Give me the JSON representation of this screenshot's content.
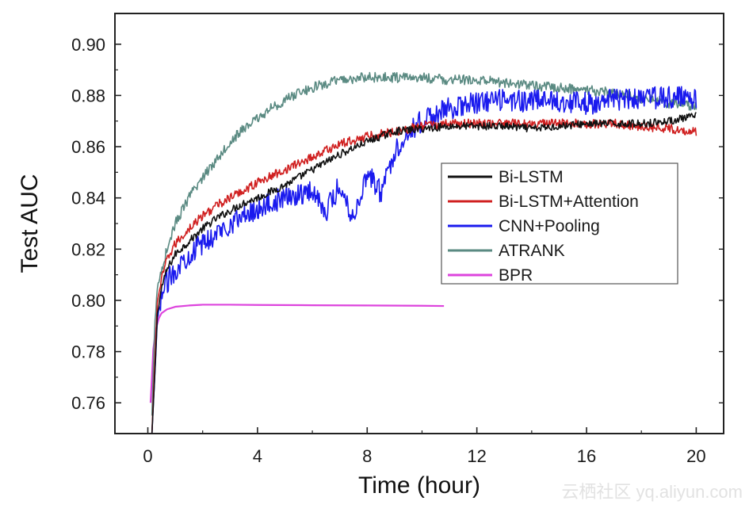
{
  "chart_data": {
    "type": "line",
    "xlabel": "Time (hour)",
    "ylabel": "Test AUC",
    "xlim": [
      -1.2,
      21.0
    ],
    "ylim": [
      0.748,
      0.912
    ],
    "xticks": [
      0,
      4,
      8,
      12,
      16,
      20
    ],
    "xtick_labels": [
      "0",
      "4",
      "8",
      "12",
      "16",
      "20"
    ],
    "yticks": [
      0.76,
      0.78,
      0.8,
      0.82,
      0.84,
      0.86,
      0.88,
      0.9
    ],
    "ytick_labels": [
      "0.76",
      "0.78",
      "0.80",
      "0.82",
      "0.84",
      "0.86",
      "0.88",
      "0.90"
    ],
    "grid": false,
    "legend_position": "center-right",
    "series": [
      {
        "name": "Bi-LSTM",
        "color": "#111111",
        "noise": 0.0015,
        "x": [
          0.15,
          0.25,
          0.35,
          0.5,
          0.7,
          1.0,
          1.5,
          2,
          2.5,
          3,
          3.5,
          4,
          5,
          6,
          7,
          8,
          9,
          10,
          11,
          12,
          13,
          14,
          15,
          16,
          17,
          18,
          19,
          20
        ],
        "y": [
          0.748,
          0.77,
          0.795,
          0.805,
          0.812,
          0.818,
          0.823,
          0.828,
          0.832,
          0.835,
          0.838,
          0.84,
          0.845,
          0.851,
          0.857,
          0.862,
          0.866,
          0.867,
          0.868,
          0.868,
          0.868,
          0.867,
          0.868,
          0.869,
          0.869,
          0.869,
          0.87,
          0.872
        ]
      },
      {
        "name": "Bi-LSTM+Attention",
        "color": "#d02020",
        "noise": 0.0018,
        "x": [
          0.15,
          0.25,
          0.35,
          0.5,
          0.7,
          1.0,
          1.5,
          2,
          2.5,
          3,
          3.5,
          4,
          5,
          6,
          7,
          8,
          9,
          10,
          11,
          12,
          13,
          14,
          15,
          16,
          17,
          18,
          19,
          20
        ],
        "y": [
          0.748,
          0.775,
          0.8,
          0.808,
          0.816,
          0.822,
          0.828,
          0.833,
          0.837,
          0.84,
          0.843,
          0.846,
          0.851,
          0.856,
          0.861,
          0.864,
          0.866,
          0.868,
          0.869,
          0.869,
          0.869,
          0.869,
          0.869,
          0.869,
          0.869,
          0.868,
          0.867,
          0.866
        ]
      },
      {
        "name": "CNN+Pooling",
        "color": "#1a1aee",
        "noise": 0.0045,
        "x": [
          0.15,
          0.25,
          0.35,
          0.5,
          0.7,
          1.0,
          1.5,
          2,
          2.5,
          3,
          3.5,
          4,
          5,
          6,
          6.5,
          7,
          7.5,
          8,
          8.5,
          9,
          9.5,
          10,
          11,
          12,
          13,
          14,
          15,
          16,
          17,
          18,
          19,
          20
        ],
        "y": [
          0.748,
          0.77,
          0.792,
          0.802,
          0.807,
          0.812,
          0.818,
          0.822,
          0.826,
          0.83,
          0.833,
          0.836,
          0.84,
          0.843,
          0.835,
          0.845,
          0.832,
          0.85,
          0.842,
          0.858,
          0.866,
          0.87,
          0.875,
          0.877,
          0.878,
          0.878,
          0.878,
          0.877,
          0.878,
          0.879,
          0.879,
          0.879
        ]
      },
      {
        "name": "ATRANK",
        "color": "#5a8a82",
        "noise": 0.002,
        "x": [
          0.15,
          0.25,
          0.35,
          0.5,
          0.7,
          1.0,
          1.5,
          2,
          2.5,
          3,
          3.5,
          4,
          4.5,
          5,
          5.5,
          6,
          7,
          8,
          9,
          10,
          11,
          12,
          13,
          14,
          15,
          16,
          17,
          18,
          19,
          20
        ],
        "y": [
          0.755,
          0.79,
          0.805,
          0.812,
          0.82,
          0.83,
          0.84,
          0.848,
          0.855,
          0.862,
          0.867,
          0.871,
          0.875,
          0.878,
          0.881,
          0.883,
          0.886,
          0.887,
          0.887,
          0.887,
          0.886,
          0.886,
          0.885,
          0.884,
          0.883,
          0.882,
          0.881,
          0.879,
          0.877,
          0.876
        ]
      },
      {
        "name": "BPR",
        "color": "#dd44dd",
        "noise": 0,
        "x": [
          0.1,
          0.15,
          0.2,
          0.3,
          0.4,
          0.5,
          0.7,
          1.0,
          1.5,
          2.0,
          3.0,
          4,
          6,
          8,
          10,
          10.8
        ],
        "y": [
          0.76,
          0.77,
          0.781,
          0.789,
          0.793,
          0.795,
          0.7965,
          0.7975,
          0.798,
          0.7983,
          0.7983,
          0.7982,
          0.7981,
          0.798,
          0.7979,
          0.7978
        ]
      }
    ]
  },
  "watermark": "云栖社区 yq.aliyun.com"
}
